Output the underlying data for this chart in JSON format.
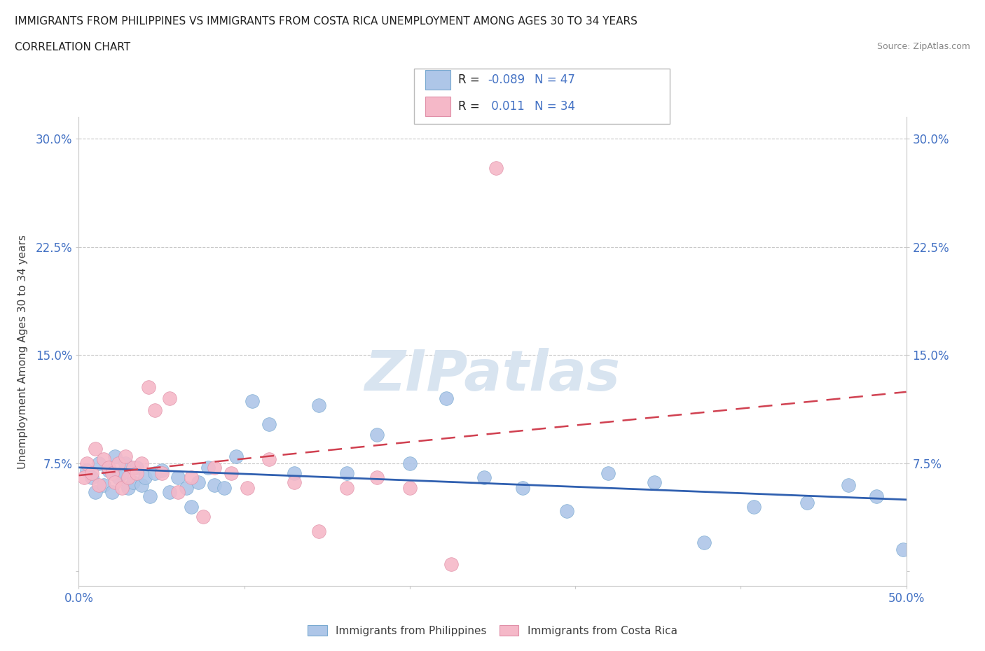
{
  "title_line1": "IMMIGRANTS FROM PHILIPPINES VS IMMIGRANTS FROM COSTA RICA UNEMPLOYMENT AMONG AGES 30 TO 34 YEARS",
  "title_line2": "CORRELATION CHART",
  "source_text": "Source: ZipAtlas.com",
  "ylabel": "Unemployment Among Ages 30 to 34 years",
  "xlim": [
    0.0,
    0.5
  ],
  "ylim": [
    -0.01,
    0.315
  ],
  "xticks": [
    0.0,
    0.1,
    0.2,
    0.3,
    0.4,
    0.5
  ],
  "xticklabels": [
    "0.0%",
    "",
    "",
    "",
    "",
    "50.0%"
  ],
  "yticks": [
    0.0,
    0.075,
    0.15,
    0.225,
    0.3
  ],
  "yticklabels": [
    "",
    "7.5%",
    "15.0%",
    "22.5%",
    "30.0%"
  ],
  "r_philippines": -0.089,
  "n_philippines": 47,
  "r_costa_rica": 0.011,
  "n_costa_rica": 34,
  "philippines_color": "#aec6e8",
  "philippines_edge": "#7aaad0",
  "costa_rica_color": "#f5b8c8",
  "costa_rica_edge": "#e090a8",
  "philippines_line_color": "#3060b0",
  "costa_rica_line_color": "#d04050",
  "watermark_color": "#d8e4f0",
  "grid_color": "#c8c8c8",
  "title_color": "#222222",
  "tick_label_color": "#4472c4",
  "philippines_x": [
    0.005,
    0.008,
    0.01,
    0.012,
    0.015,
    0.018,
    0.02,
    0.022,
    0.024,
    0.026,
    0.028,
    0.03,
    0.033,
    0.035,
    0.038,
    0.04,
    0.043,
    0.046,
    0.05,
    0.055,
    0.06,
    0.065,
    0.068,
    0.072,
    0.078,
    0.082,
    0.088,
    0.095,
    0.105,
    0.115,
    0.13,
    0.145,
    0.162,
    0.18,
    0.2,
    0.222,
    0.245,
    0.268,
    0.295,
    0.32,
    0.348,
    0.378,
    0.408,
    0.44,
    0.465,
    0.482,
    0.498
  ],
  "philippines_y": [
    0.07,
    0.065,
    0.055,
    0.075,
    0.06,
    0.07,
    0.055,
    0.08,
    0.065,
    0.068,
    0.075,
    0.058,
    0.062,
    0.072,
    0.06,
    0.065,
    0.052,
    0.068,
    0.07,
    0.055,
    0.065,
    0.058,
    0.045,
    0.062,
    0.072,
    0.06,
    0.058,
    0.08,
    0.118,
    0.102,
    0.068,
    0.115,
    0.068,
    0.095,
    0.075,
    0.12,
    0.065,
    0.058,
    0.042,
    0.068,
    0.062,
    0.02,
    0.045,
    0.048,
    0.06,
    0.052,
    0.015
  ],
  "costa_rica_x": [
    0.003,
    0.005,
    0.008,
    0.01,
    0.012,
    0.015,
    0.018,
    0.02,
    0.022,
    0.024,
    0.026,
    0.028,
    0.03,
    0.033,
    0.035,
    0.038,
    0.042,
    0.046,
    0.05,
    0.055,
    0.06,
    0.068,
    0.075,
    0.082,
    0.092,
    0.102,
    0.115,
    0.13,
    0.145,
    0.162,
    0.18,
    0.2,
    0.225,
    0.252
  ],
  "costa_rica_y": [
    0.065,
    0.075,
    0.068,
    0.085,
    0.06,
    0.078,
    0.072,
    0.068,
    0.062,
    0.075,
    0.058,
    0.08,
    0.065,
    0.072,
    0.068,
    0.075,
    0.128,
    0.112,
    0.068,
    0.12,
    0.055,
    0.065,
    0.038,
    0.072,
    0.068,
    0.058,
    0.078,
    0.062,
    0.028,
    0.058,
    0.065,
    0.058,
    0.005,
    0.28
  ]
}
